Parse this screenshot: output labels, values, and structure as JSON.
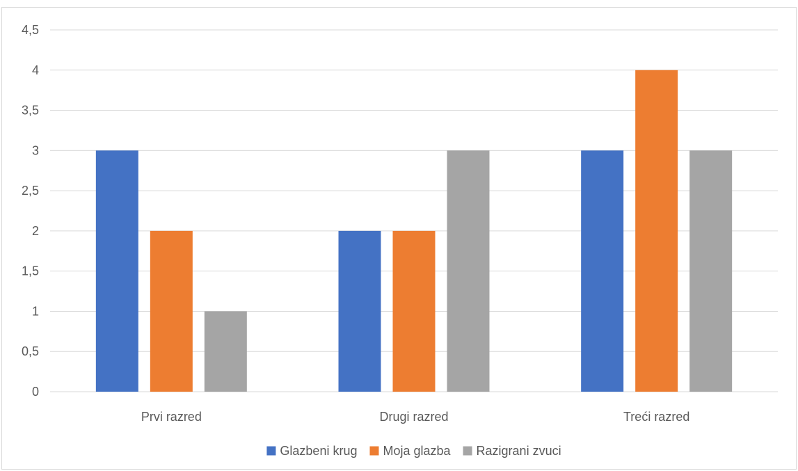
{
  "chart_data": {
    "type": "bar",
    "categories": [
      "Prvi razred",
      "Drugi razred",
      "Treći razred"
    ],
    "series": [
      {
        "name": "Glazbeni krug",
        "values": [
          3,
          2,
          3
        ],
        "color": "#4472c4"
      },
      {
        "name": "Moja glazba",
        "values": [
          2,
          2,
          4
        ],
        "color": "#ed7d31"
      },
      {
        "name": "Razigrani zvuci",
        "values": [
          1,
          3,
          3
        ],
        "color": "#a5a5a5"
      }
    ],
    "title": "",
    "xlabel": "",
    "ylabel": "",
    "ylim": [
      0,
      4.5
    ],
    "yticks": [
      "0",
      "0,5",
      "1",
      "1,5",
      "2",
      "2,5",
      "3",
      "3,5",
      "4",
      "4,5"
    ],
    "grid": true,
    "gridColor": "#d9d9d9",
    "legend_position": "bottom"
  }
}
